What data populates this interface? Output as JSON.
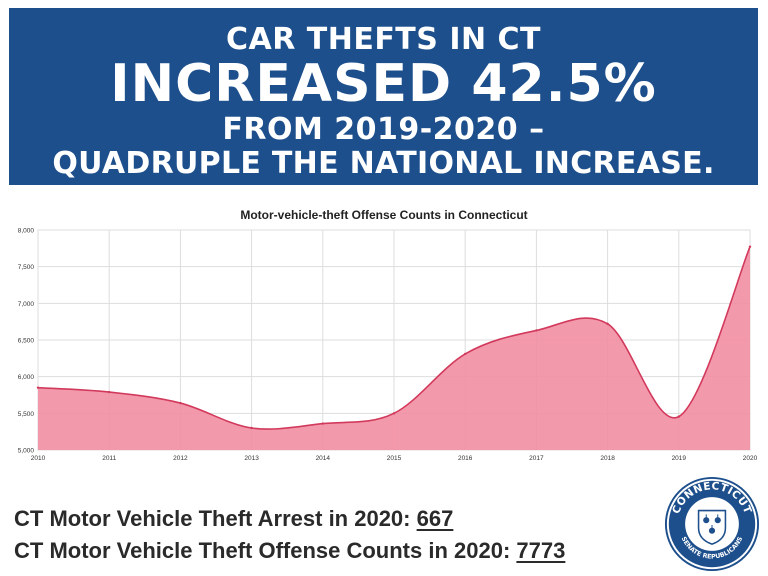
{
  "banner": {
    "line1": "CAR THEFTS IN CT",
    "line2": "INCREASED 42.5%",
    "line3": "FROM 2019-2020 –",
    "line4": "QUADRUPLE THE NATIONAL INCREASE."
  },
  "footer": {
    "arrest_label": "CT Motor Vehicle Theft Arrest in 2020: ",
    "arrest_value": "667",
    "offense_label": "CT Motor Vehicle Theft Offense Counts in 2020: ",
    "offense_value": "7773"
  },
  "seal": {
    "top_text": "CONNECTICUT",
    "bottom_text": "SENATE REPUBLICANS",
    "ring_color": "#1d4f8c",
    "icon": "grapevine-shield-icon"
  },
  "chart_data": {
    "type": "area",
    "title": "Motor-vehicle-theft Offense Counts in Connecticut",
    "xlabel": "",
    "ylabel": "",
    "x": [
      "2010",
      "2011",
      "2012",
      "2013",
      "2014",
      "2015",
      "2016",
      "2017",
      "2018",
      "2019",
      "2020"
    ],
    "values": [
      5850,
      5790,
      5640,
      5300,
      5360,
      5500,
      6310,
      6630,
      6720,
      5455,
      7773
    ],
    "ylim": [
      5000,
      8000
    ],
    "yticks": [
      "5,000",
      "5,500",
      "6,000",
      "6,500",
      "7,000",
      "7,500",
      "8,000"
    ],
    "ytick_values": [
      5000,
      5500,
      6000,
      6500,
      7000,
      7500,
      8000
    ],
    "grid": true,
    "fill_color": "#f28ea3",
    "line_color": "#d23a5c"
  }
}
